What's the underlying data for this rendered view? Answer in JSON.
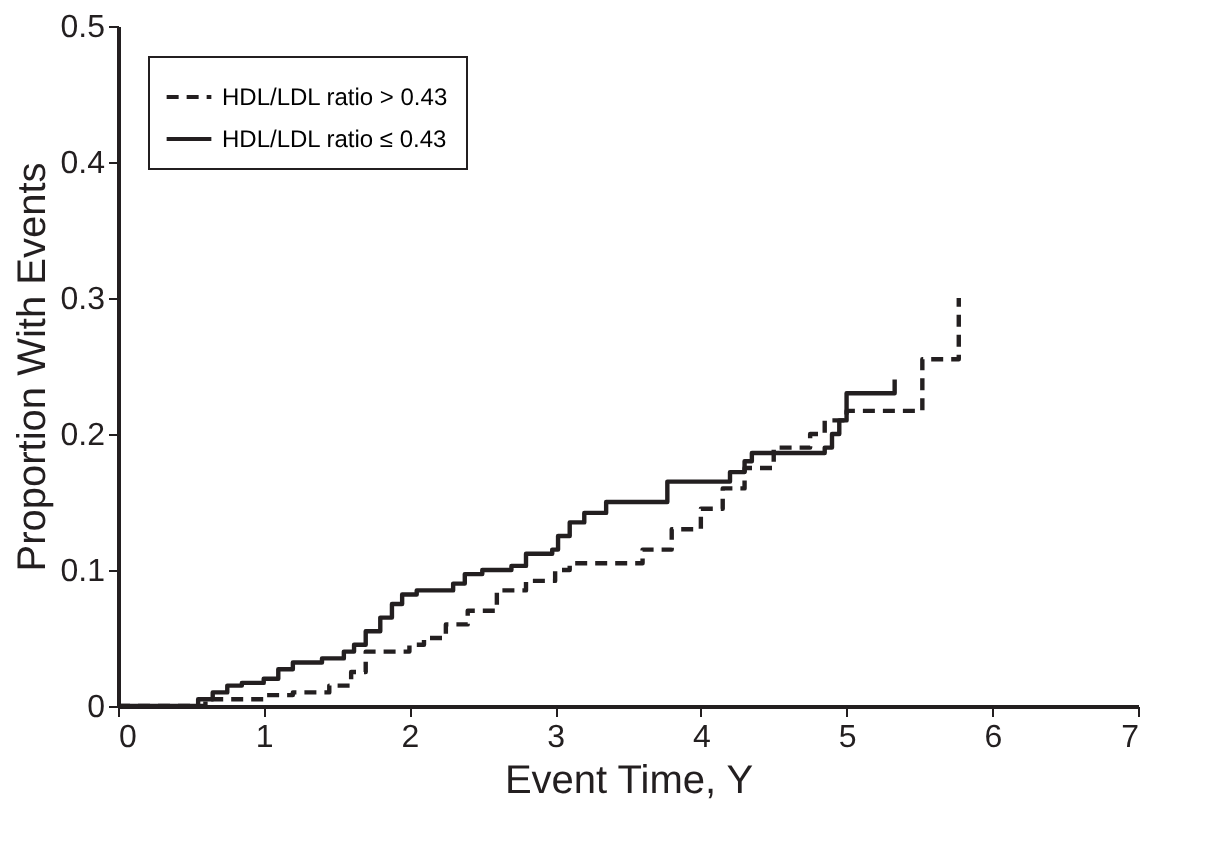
{
  "chart_data": {
    "type": "step",
    "xlabel": "Event Time, Y",
    "ylabel": "Proportion With Events",
    "xlim": [
      0,
      7
    ],
    "xticks": [
      0,
      1,
      2,
      3,
      4,
      5,
      6,
      7
    ],
    "ylim": [
      0,
      0.5
    ],
    "yticks": [
      0,
      0.1,
      0.2,
      0.3,
      0.4,
      0.5
    ],
    "grid": false,
    "legend": "top left",
    "marker": "none",
    "series": [
      {
        "name": "HDL/LDL ratio > 0.43",
        "color": "#231f20",
        "line_style": "dashed",
        "x": [
          0,
          0.55,
          0.6,
          0.75,
          1.0,
          1.2,
          1.45,
          1.6,
          1.7,
          2.0,
          2.1,
          2.25,
          2.4,
          2.6,
          2.8,
          3.0,
          3.1,
          3.45,
          3.6,
          3.8,
          4.0,
          4.15,
          4.3,
          4.5,
          4.75,
          4.85,
          5.0,
          5.52,
          5.77,
          5.77
        ],
        "values": [
          0,
          0,
          0.005,
          0.005,
          0.008,
          0.01,
          0.015,
          0.025,
          0.04,
          0.045,
          0.05,
          0.06,
          0.07,
          0.085,
          0.092,
          0.1,
          0.105,
          0.105,
          0.115,
          0.13,
          0.145,
          0.16,
          0.175,
          0.19,
          0.2,
          0.21,
          0.217,
          0.255,
          0.255,
          0.3
        ]
      },
      {
        "name": "HDL/LDL ratio ≤ 0.43",
        "color": "#231f20",
        "line_style": "solid",
        "x": [
          0,
          0.53,
          0.55,
          0.65,
          0.75,
          0.85,
          1.0,
          1.1,
          1.2,
          1.4,
          1.55,
          1.62,
          1.7,
          1.8,
          1.88,
          1.95,
          2.05,
          2.3,
          2.38,
          2.5,
          2.7,
          2.8,
          2.98,
          3.02,
          3.1,
          3.2,
          3.35,
          3.77,
          4.2,
          4.3,
          4.35,
          4.85,
          4.9,
          4.95,
          5.0,
          5.33,
          5.33
        ],
        "values": [
          0,
          0,
          0.005,
          0.01,
          0.015,
          0.017,
          0.02,
          0.027,
          0.032,
          0.035,
          0.04,
          0.045,
          0.055,
          0.065,
          0.075,
          0.082,
          0.085,
          0.09,
          0.097,
          0.1,
          0.103,
          0.112,
          0.115,
          0.125,
          0.135,
          0.142,
          0.15,
          0.165,
          0.172,
          0.18,
          0.186,
          0.19,
          0.2,
          0.21,
          0.23,
          0.23,
          0.24
        ]
      }
    ]
  }
}
